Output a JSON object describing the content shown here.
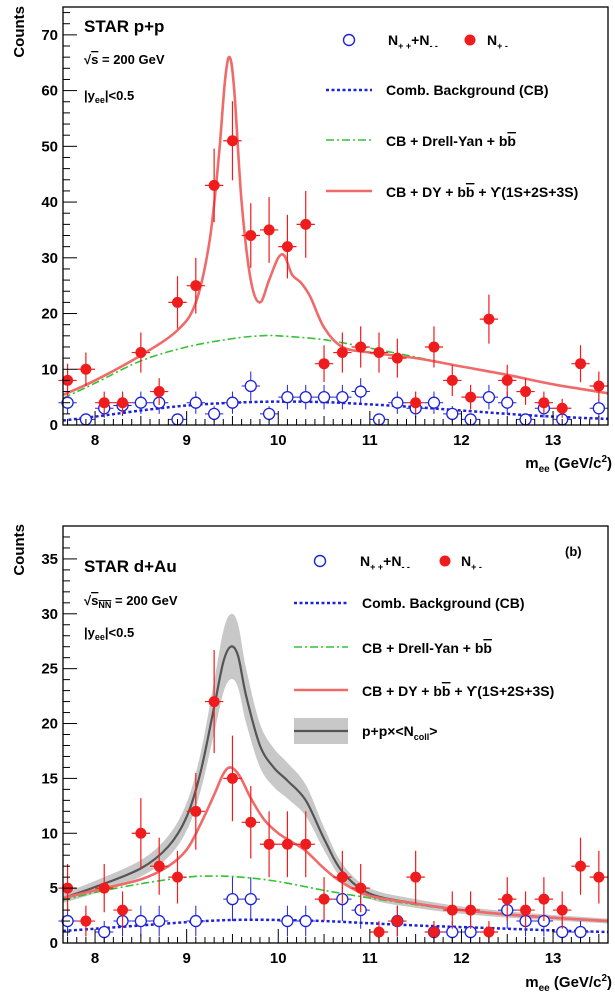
{
  "chart_data": [
    {
      "type": "scatter",
      "id": "pp",
      "xlabel": "m_ee (GeV/c²)",
      "ylabel": "Counts",
      "xlim": [
        7.65,
        13.6
      ],
      "ylim": [
        0,
        75
      ],
      "xticks": [
        8,
        9,
        10,
        11,
        12,
        13
      ],
      "yticks": [
        0,
        10,
        20,
        30,
        40,
        50,
        60,
        70
      ],
      "text": {
        "title": "STAR p+p",
        "energy": "√s = 200 GeV",
        "rapidity": "|y_ee|<0.5"
      },
      "legend": {
        "likesign": "N₊₊+N₋₋",
        "unlike": "N₊₋",
        "cb": "Comb. Background (CB)",
        "dy": "CB + Drell-Yan + bb̄",
        "full": "CB + DY + bb̄ + ϒ(1S+2S+3S)"
      },
      "colors": {
        "unlike": "#ee1c1c",
        "likesign": "#1e22d8",
        "cb": "#1e22d8",
        "dy": "#33c333",
        "full": "#f06a6a"
      },
      "unlike": [
        [
          7.7,
          8,
          3
        ],
        [
          7.9,
          10,
          3
        ],
        [
          8.1,
          4,
          2
        ],
        [
          8.3,
          4,
          2
        ],
        [
          8.5,
          13,
          3.6
        ],
        [
          8.7,
          6,
          2.4
        ],
        [
          8.9,
          22,
          4.7
        ],
        [
          9.1,
          25,
          5
        ],
        [
          9.3,
          43,
          6.6
        ],
        [
          9.5,
          51,
          7.1
        ],
        [
          9.7,
          34,
          5.8
        ],
        [
          9.9,
          35,
          5.9
        ],
        [
          10.1,
          32,
          5.7
        ],
        [
          10.3,
          36,
          6
        ],
        [
          10.5,
          11,
          3.3
        ],
        [
          10.7,
          13,
          3.6
        ],
        [
          10.9,
          14,
          3.7
        ],
        [
          11.1,
          13,
          3.6
        ],
        [
          11.3,
          12,
          3.5
        ],
        [
          11.5,
          4,
          2
        ],
        [
          11.7,
          14,
          3.7
        ],
        [
          11.9,
          8,
          2.8
        ],
        [
          12.1,
          5,
          2.2
        ],
        [
          12.3,
          19,
          4.4
        ],
        [
          12.5,
          8,
          2.8
        ],
        [
          12.7,
          6,
          2.4
        ],
        [
          12.9,
          4,
          2
        ],
        [
          13.1,
          3,
          1.7
        ],
        [
          13.3,
          11,
          3.3
        ],
        [
          13.5,
          7,
          2.6
        ]
      ],
      "likesign": [
        [
          7.7,
          4,
          2
        ],
        [
          7.9,
          1,
          1
        ],
        [
          8.1,
          3,
          1.7
        ],
        [
          8.3,
          3.5,
          1.9
        ],
        [
          8.5,
          4,
          2
        ],
        [
          8.7,
          4,
          2
        ],
        [
          8.9,
          1,
          1
        ],
        [
          9.1,
          4,
          2
        ],
        [
          9.3,
          2,
          1.4
        ],
        [
          9.5,
          4,
          2
        ],
        [
          9.7,
          7,
          2.6
        ],
        [
          9.9,
          2,
          1.4
        ],
        [
          10.1,
          5,
          2.2
        ],
        [
          10.3,
          5,
          2.2
        ],
        [
          10.5,
          5,
          2.2
        ],
        [
          10.7,
          5,
          2.2
        ],
        [
          10.9,
          6,
          2.4
        ],
        [
          11.1,
          1,
          1
        ],
        [
          11.3,
          4,
          2
        ],
        [
          11.5,
          3,
          1.7
        ],
        [
          11.7,
          4,
          2
        ],
        [
          11.9,
          2,
          1.4
        ],
        [
          12.1,
          1,
          1
        ],
        [
          12.3,
          5,
          2.2
        ],
        [
          12.5,
          4,
          2
        ],
        [
          12.7,
          1,
          1
        ],
        [
          12.9,
          3,
          1.7
        ],
        [
          13.1,
          1,
          1
        ],
        [
          13.5,
          3,
          1.7
        ]
      ],
      "cb": [
        [
          7.65,
          0.8
        ],
        [
          8,
          1.5
        ],
        [
          8.5,
          2.6
        ],
        [
          9,
          3.5
        ],
        [
          9.5,
          4
        ],
        [
          10,
          4.2
        ],
        [
          10.5,
          4.1
        ],
        [
          11,
          3.7
        ],
        [
          11.5,
          3.2
        ],
        [
          12,
          2.6
        ],
        [
          12.5,
          2
        ],
        [
          13,
          1.5
        ],
        [
          13.6,
          1.1
        ]
      ],
      "dy": [
        [
          7.65,
          4.8
        ],
        [
          8,
          7.5
        ],
        [
          8.5,
          11.5
        ],
        [
          9,
          14
        ],
        [
          9.5,
          15.5
        ],
        [
          9.8,
          16
        ],
        [
          10,
          16
        ],
        [
          10.5,
          15.3
        ],
        [
          11,
          13.8
        ],
        [
          11.5,
          12.2
        ],
        [
          12,
          10.5
        ],
        [
          12.5,
          9
        ],
        [
          13,
          7.3
        ],
        [
          13.6,
          5.6
        ]
      ],
      "full": [
        [
          7.65,
          5.4
        ],
        [
          8,
          8
        ],
        [
          8.5,
          12.5
        ],
        [
          8.9,
          17
        ],
        [
          9.1,
          22
        ],
        [
          9.25,
          33
        ],
        [
          9.35,
          48
        ],
        [
          9.42,
          62
        ],
        [
          9.47,
          66
        ],
        [
          9.52,
          60
        ],
        [
          9.6,
          40
        ],
        [
          9.7,
          26
        ],
        [
          9.8,
          22
        ],
        [
          9.9,
          26
        ],
        [
          10,
          30
        ],
        [
          10.07,
          30.3
        ],
        [
          10.15,
          27
        ],
        [
          10.25,
          25.5
        ],
        [
          10.35,
          23
        ],
        [
          10.5,
          17.5
        ],
        [
          10.7,
          14
        ],
        [
          11,
          13
        ],
        [
          11.5,
          12
        ],
        [
          12,
          10.5
        ],
        [
          12.5,
          9
        ],
        [
          13,
          7.3
        ],
        [
          13.6,
          5.7
        ]
      ]
    },
    {
      "type": "scatter",
      "id": "dau",
      "xlabel": "m_ee (GeV/c²)",
      "ylabel": "Counts",
      "xlim": [
        7.65,
        13.6
      ],
      "ylim": [
        0,
        38
      ],
      "xticks": [
        8,
        9,
        10,
        11,
        12,
        13
      ],
      "yticks": [
        0,
        5,
        10,
        15,
        20,
        25,
        30,
        35
      ],
      "text": {
        "title": "STAR d+Au",
        "energy": "√s_NN = 200 GeV",
        "rapidity": "|y_ee|<0.5",
        "panel": "(b)"
      },
      "legend": {
        "likesign": "N₊₊+N₋₋",
        "unlike": "N₊₋",
        "cb": "Comb. Background (CB)",
        "dy": "CB + Drell-Yan + bb̄",
        "full": "CB + DY + bb̄ + ϒ(1S+2S+3S)",
        "pp": "p+p×<N_coll>"
      },
      "colors": {
        "unlike": "#ee1c1c",
        "likesign": "#1e22d8",
        "cb": "#1e22d8",
        "dy": "#33c333",
        "full": "#f06a6a",
        "pp": "#555555",
        "band": "#c8c8c8"
      },
      "unlike": [
        [
          7.7,
          5,
          2.2
        ],
        [
          7.9,
          2,
          1.4
        ],
        [
          8.1,
          5,
          2.2
        ],
        [
          8.3,
          3,
          1.7
        ],
        [
          8.5,
          10,
          3.2
        ],
        [
          8.7,
          7,
          2.6
        ],
        [
          8.9,
          6,
          2.4
        ],
        [
          9.1,
          12,
          3.5
        ],
        [
          9.3,
          22,
          4.7
        ],
        [
          9.5,
          15,
          3.9
        ],
        [
          9.7,
          11,
          3.3
        ],
        [
          9.9,
          9,
          3
        ],
        [
          10.1,
          9,
          3
        ],
        [
          10.3,
          9,
          3
        ],
        [
          10.5,
          4,
          2
        ],
        [
          10.7,
          6,
          2.4
        ],
        [
          10.9,
          5,
          2.2
        ],
        [
          11.1,
          1,
          1
        ],
        [
          11.3,
          2,
          1.4
        ],
        [
          11.5,
          6,
          2.4
        ],
        [
          11.7,
          1,
          1
        ],
        [
          11.9,
          3,
          1.7
        ],
        [
          12.1,
          3,
          1.7
        ],
        [
          12.3,
          1,
          1
        ],
        [
          12.5,
          4,
          2
        ],
        [
          12.7,
          3,
          1.7
        ],
        [
          12.9,
          4,
          2
        ],
        [
          13.1,
          3,
          1.7
        ],
        [
          13.3,
          7,
          2.6
        ],
        [
          13.5,
          6,
          2.4
        ]
      ],
      "likesign": [
        [
          7.7,
          2,
          1.4
        ],
        [
          8.1,
          1,
          1
        ],
        [
          8.3,
          2,
          1.4
        ],
        [
          8.5,
          2,
          1.4
        ],
        [
          8.7,
          2,
          1.4
        ],
        [
          9.1,
          2,
          1.4
        ],
        [
          9.5,
          4,
          2
        ],
        [
          9.7,
          4,
          2
        ],
        [
          10.1,
          2,
          1.4
        ],
        [
          10.3,
          2,
          1.4
        ],
        [
          10.7,
          4,
          2
        ],
        [
          10.9,
          3,
          1.7
        ],
        [
          11.3,
          2,
          1.4
        ],
        [
          11.7,
          1,
          1
        ],
        [
          11.9,
          1,
          1
        ],
        [
          12.1,
          1,
          1
        ],
        [
          12.5,
          3,
          1.7
        ],
        [
          12.7,
          2,
          1.4
        ],
        [
          12.9,
          2,
          1.4
        ],
        [
          13.1,
          1,
          1
        ],
        [
          13.3,
          1,
          1
        ]
      ],
      "cb": [
        [
          7.65,
          1.1
        ],
        [
          8,
          1.3
        ],
        [
          8.5,
          1.6
        ],
        [
          9,
          1.9
        ],
        [
          9.5,
          2.1
        ],
        [
          10,
          2.1
        ],
        [
          10.5,
          2
        ],
        [
          11,
          1.8
        ],
        [
          11.5,
          1.6
        ],
        [
          12,
          1.45
        ],
        [
          12.5,
          1.3
        ],
        [
          13,
          1.15
        ],
        [
          13.6,
          1
        ]
      ],
      "dy": [
        [
          7.65,
          3.9
        ],
        [
          8,
          4.6
        ],
        [
          8.5,
          5.4
        ],
        [
          9,
          6
        ],
        [
          9.3,
          6.1
        ],
        [
          9.6,
          6
        ],
        [
          10,
          5.6
        ],
        [
          10.5,
          4.8
        ],
        [
          11,
          4.1
        ],
        [
          11.5,
          3.5
        ],
        [
          12,
          3
        ],
        [
          12.5,
          2.6
        ],
        [
          13,
          2.3
        ],
        [
          13.6,
          2
        ]
      ],
      "full": [
        [
          7.65,
          4.1
        ],
        [
          8,
          4.8
        ],
        [
          8.5,
          5.8
        ],
        [
          8.8,
          7
        ],
        [
          9,
          8.5
        ],
        [
          9.15,
          10.8
        ],
        [
          9.3,
          13.5
        ],
        [
          9.4,
          15.4
        ],
        [
          9.48,
          16
        ],
        [
          9.58,
          15.2
        ],
        [
          9.7,
          13.2
        ],
        [
          9.85,
          11.2
        ],
        [
          10,
          10
        ],
        [
          10.15,
          9.2
        ],
        [
          10.3,
          8.4
        ],
        [
          10.5,
          6.8
        ],
        [
          10.7,
          5.5
        ],
        [
          11,
          4.3
        ],
        [
          11.5,
          3.6
        ],
        [
          12,
          3
        ],
        [
          12.5,
          2.6
        ],
        [
          13,
          2.3
        ],
        [
          13.6,
          2
        ]
      ],
      "pp": [
        [
          7.65,
          4.1
        ],
        [
          8,
          5.1
        ],
        [
          8.5,
          6.8
        ],
        [
          8.8,
          8.8
        ],
        [
          9,
          11.5
        ],
        [
          9.15,
          15.5
        ],
        [
          9.3,
          21.5
        ],
        [
          9.4,
          25.6
        ],
        [
          9.48,
          27
        ],
        [
          9.56,
          26.2
        ],
        [
          9.65,
          22.5
        ],
        [
          9.8,
          18
        ],
        [
          9.95,
          16
        ],
        [
          10.1,
          14.8
        ],
        [
          10.3,
          13
        ],
        [
          10.5,
          9.5
        ],
        [
          10.7,
          6.5
        ],
        [
          11,
          4.5
        ],
        [
          11.5,
          3.6
        ],
        [
          12,
          3
        ],
        [
          12.5,
          2.6
        ],
        [
          13,
          2.3
        ],
        [
          13.6,
          2
        ]
      ]
    }
  ]
}
